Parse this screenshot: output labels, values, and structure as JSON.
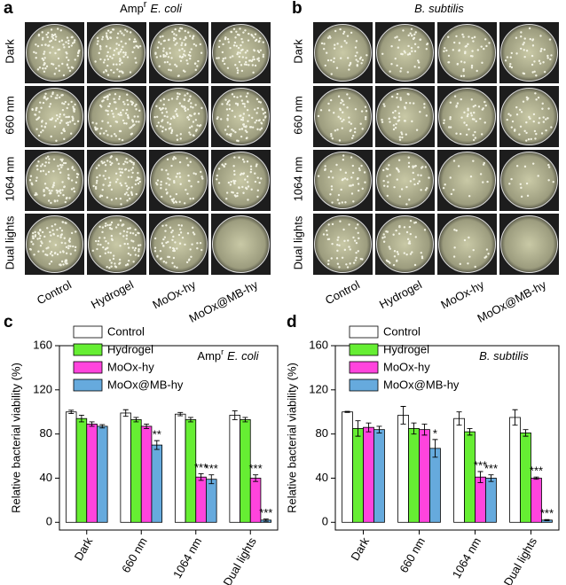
{
  "photo_panels": [
    {
      "label": "a",
      "title": [
        {
          "text": "Amp"
        },
        {
          "text": "r",
          "sup": true
        },
        {
          "text": "E. coli",
          "italic": true
        }
      ],
      "rows": [
        "Dark",
        "660 nm",
        "1064 nm",
        "Dual lights"
      ],
      "columns": [
        "Control",
        "Hydrogel",
        "MoOx-hy",
        "MoOx@MB-hy"
      ]
    },
    {
      "label": "b",
      "title": [
        {
          "text": "B. subtilis",
          "italic": true
        }
      ],
      "rows": [
        "Dark",
        "660 nm",
        "1064 nm",
        "Dual lights"
      ],
      "columns": [
        "Control",
        "Hydrogel",
        "MoOx-hy",
        "MoOx@MB-hy"
      ]
    }
  ],
  "chart_data": [
    {
      "type": "bar",
      "label": "c",
      "annotation": [
        {
          "text": "Amp"
        },
        {
          "text": "r",
          "sup": true
        },
        {
          "text": "E. coli",
          "italic": true
        }
      ],
      "y_label": "Relative bacterial viability (%)",
      "categories": [
        "Dark",
        "660 nm",
        "1064 nm",
        "Dual lights"
      ],
      "series": [
        {
          "name": "Control",
          "color": "#ffffff",
          "values": [
            100,
            99,
            98,
            97
          ],
          "errors": [
            1.5,
            3,
            1.5,
            4
          ],
          "significance": [
            null,
            null,
            null,
            null
          ]
        },
        {
          "name": "Hydrogel",
          "color": "#66ee33",
          "values": [
            94,
            93,
            93,
            93
          ],
          "errors": [
            3,
            2,
            2,
            2
          ],
          "significance": [
            null,
            null,
            null,
            null
          ]
        },
        {
          "name": "MoOx-hy",
          "color": "#ff44dd",
          "values": [
            89,
            87,
            41,
            40
          ],
          "errors": [
            2,
            2,
            3,
            3
          ],
          "significance": [
            null,
            null,
            "***",
            "***"
          ]
        },
        {
          "name": "MoOx@MB-hy",
          "color": "#66aadd",
          "values": [
            87,
            70,
            39,
            2
          ],
          "errors": [
            1.5,
            4,
            4,
            1
          ],
          "significance": [
            null,
            "**",
            "***",
            "***"
          ]
        }
      ],
      "ylim": [
        -7,
        160
      ],
      "yticks": [
        0,
        40,
        80,
        120,
        160
      ],
      "legend": "upper left"
    },
    {
      "type": "bar",
      "label": "d",
      "annotation": [
        {
          "text": "B. subtilis",
          "italic": true
        }
      ],
      "y_label": "Relative bacterial viability (%)",
      "categories": [
        "Dark",
        "660 nm",
        "1064 nm",
        "Dual lights"
      ],
      "series": [
        {
          "name": "Control",
          "color": "#ffffff",
          "values": [
            100,
            97,
            94,
            95
          ],
          "errors": [
            0.5,
            8,
            6,
            7
          ],
          "significance": [
            null,
            null,
            null,
            null
          ]
        },
        {
          "name": "Hydrogel",
          "color": "#66ee33",
          "values": [
            85,
            85,
            82,
            81
          ],
          "errors": [
            7,
            5,
            3,
            3
          ],
          "significance": [
            null,
            null,
            null,
            null
          ]
        },
        {
          "name": "MoOx-hy",
          "color": "#ff44dd",
          "values": [
            86,
            84,
            41,
            40
          ],
          "errors": [
            4,
            5,
            5,
            1
          ],
          "significance": [
            null,
            null,
            "***",
            "***"
          ]
        },
        {
          "name": "MoOx@MB-hy",
          "color": "#66aadd",
          "values": [
            84,
            67,
            40,
            2
          ],
          "errors": [
            3,
            8,
            3,
            0.5
          ],
          "significance": [
            null,
            "*",
            "***",
            "***"
          ]
        }
      ],
      "ylim": [
        -7,
        160
      ],
      "yticks": [
        0,
        40,
        80,
        120,
        160
      ],
      "legend": "upper left"
    }
  ]
}
